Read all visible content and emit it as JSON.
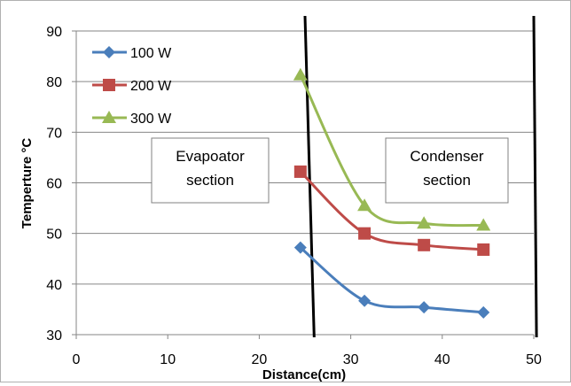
{
  "chart_data": {
    "type": "line",
    "xlabel": "Distance(cm)",
    "ylabel": "Temperture °C",
    "xlim": [
      0,
      50
    ],
    "ylim": [
      30,
      90
    ],
    "xticks": [
      0,
      10,
      20,
      30,
      40,
      50
    ],
    "yticks": [
      30,
      40,
      50,
      60,
      70,
      80,
      90
    ],
    "grid": "horizontal",
    "legend_position": "top-left",
    "series": [
      {
        "name": "100 W",
        "color": "#4a7ebb",
        "marker": "diamond",
        "x": [
          24.5,
          31.5,
          38,
          44.5
        ],
        "y": [
          47.2,
          36.7,
          35.4,
          34.4
        ]
      },
      {
        "name": "200 W",
        "color": "#be4b48",
        "marker": "square",
        "x": [
          24.5,
          31.5,
          38,
          44.5
        ],
        "y": [
          62.2,
          50.0,
          47.7,
          46.8
        ]
      },
      {
        "name": "300 W",
        "color": "#98b954",
        "marker": "triangle",
        "x": [
          24.5,
          31.5,
          38,
          44.5
        ],
        "y": [
          81.3,
          55.5,
          52.0,
          51.6
        ]
      }
    ],
    "annotations": {
      "evaporator": [
        "Evapoator",
        "section"
      ],
      "condenser": [
        "Condenser",
        "section"
      ]
    },
    "dividers": [
      {
        "x_top": 25,
        "x_bottom": 26
      },
      {
        "x_top": 50,
        "x_bottom": 50.3
      }
    ]
  }
}
